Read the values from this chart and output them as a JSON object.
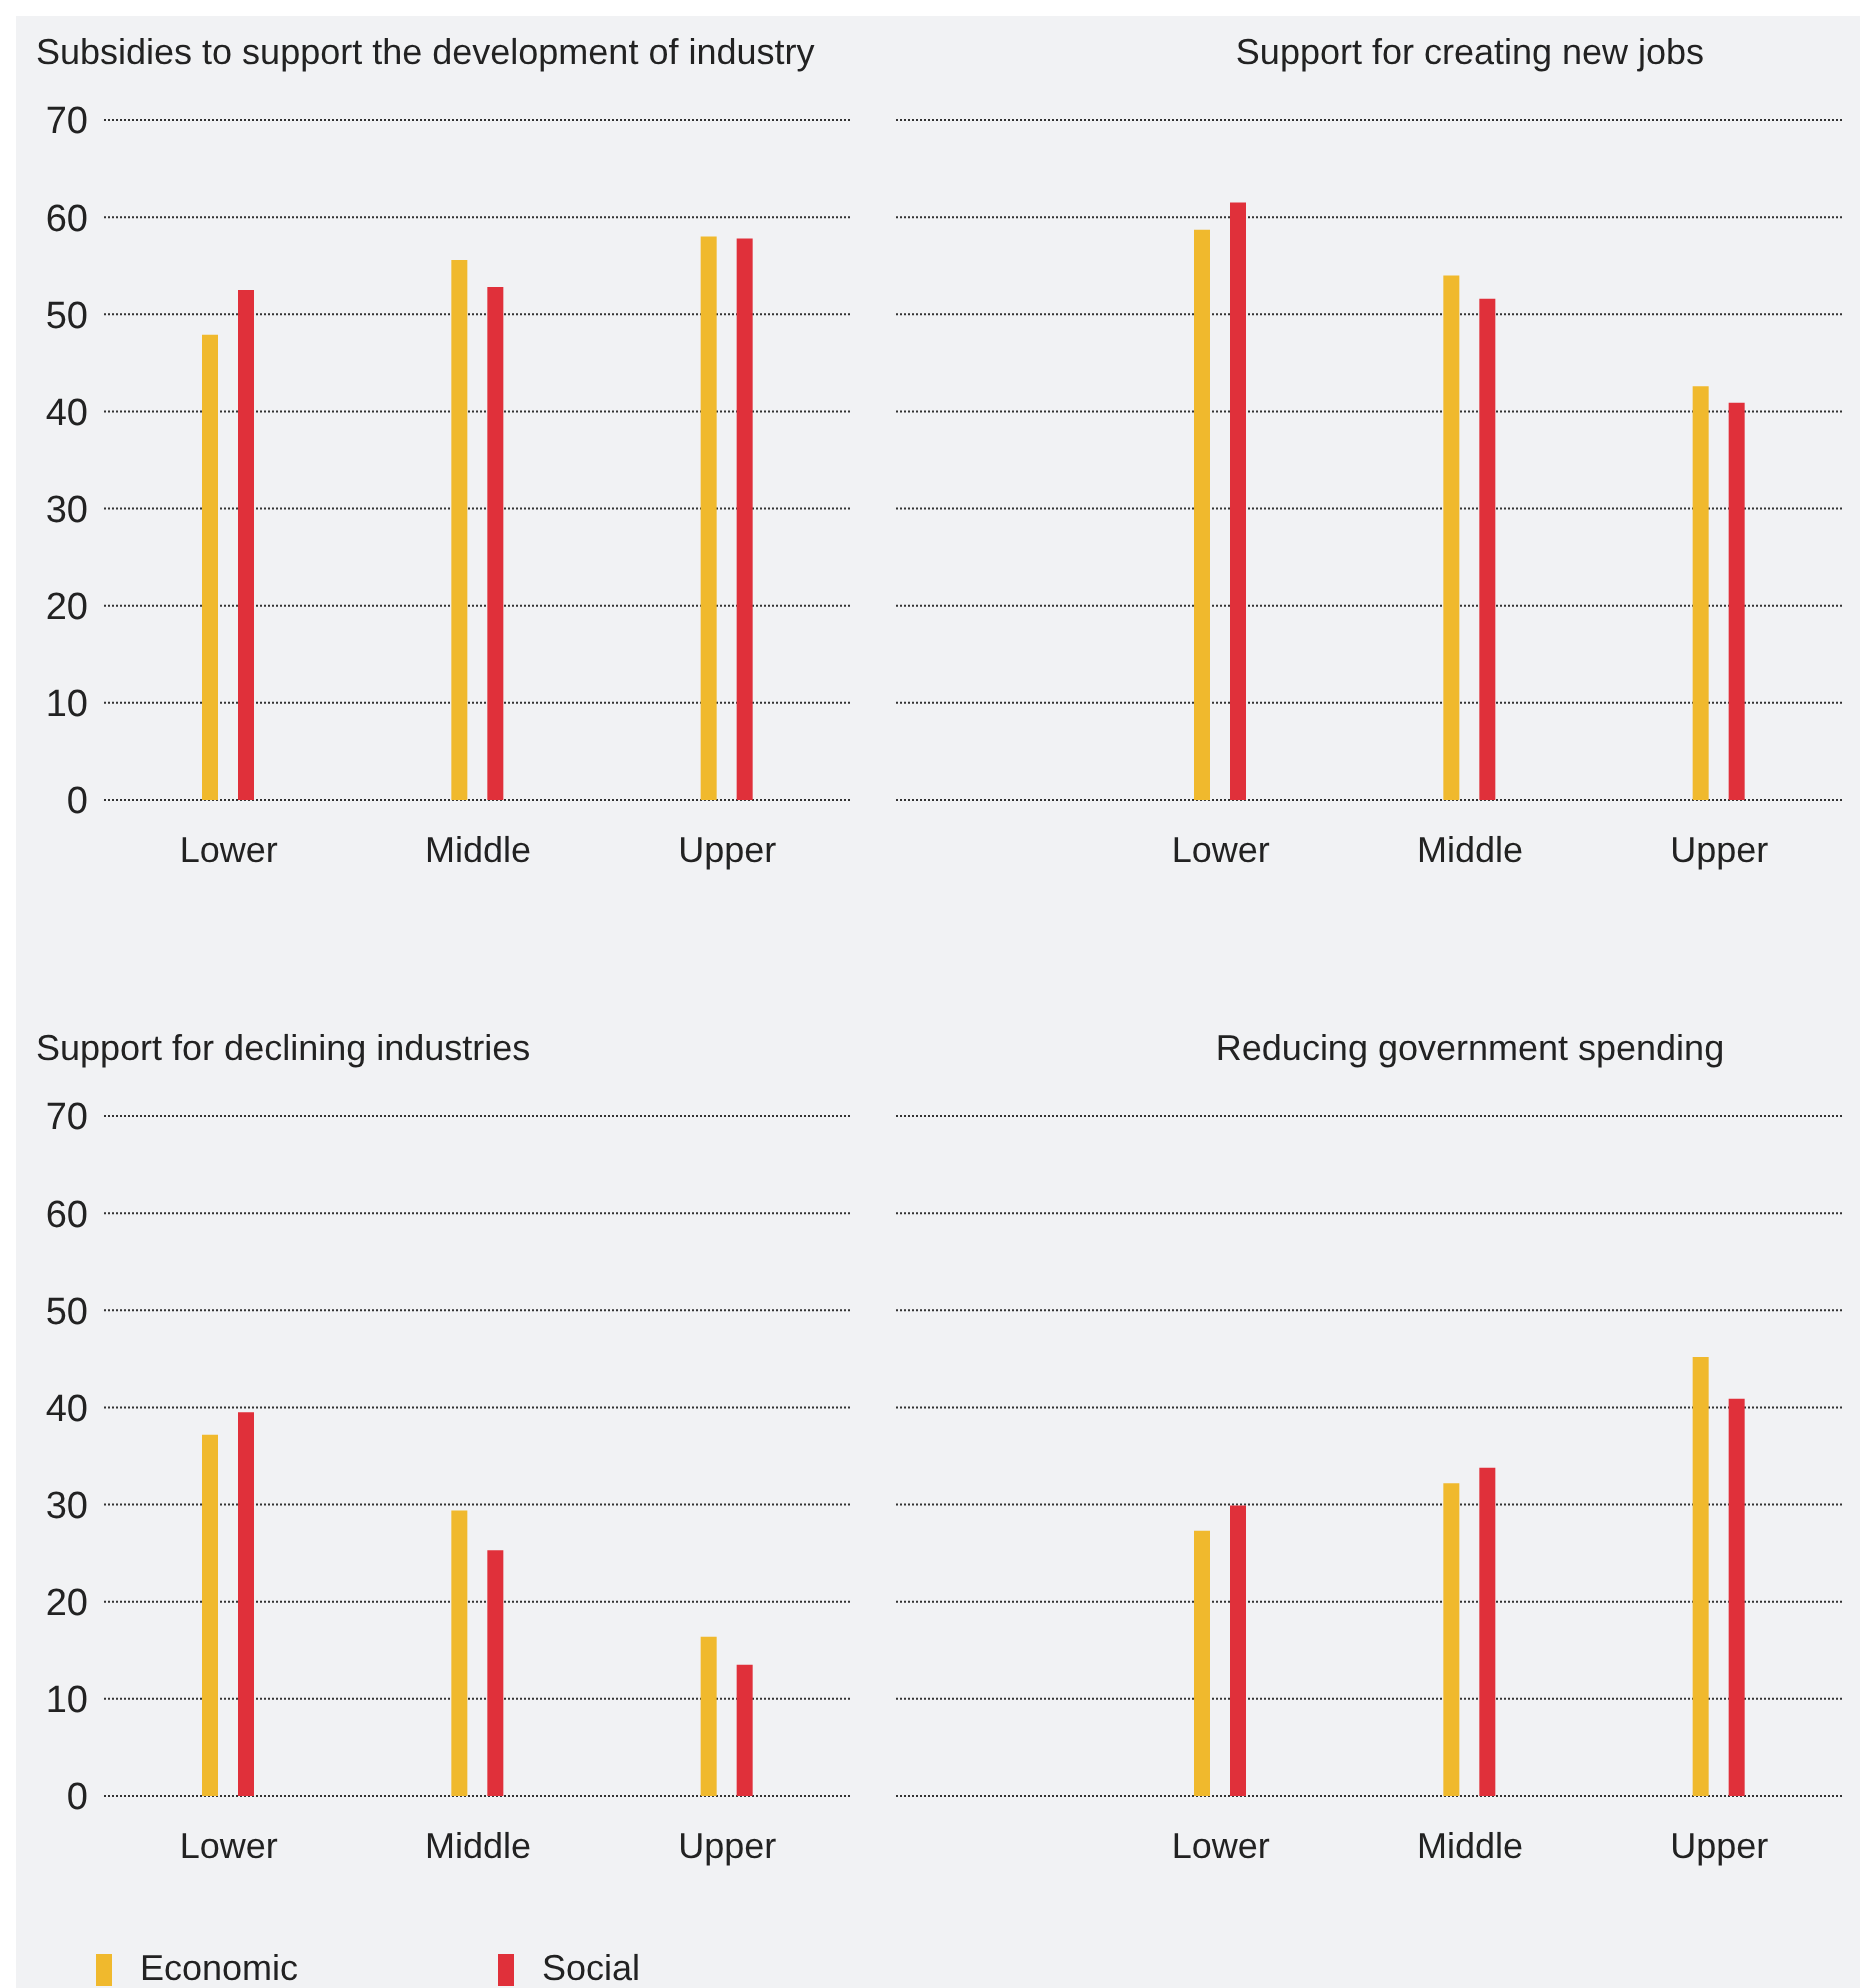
{
  "chart_data": [
    {
      "type": "bar",
      "title": "Subsidies to support the development of industry",
      "categories": [
        "Lower",
        "Middle",
        "Upper"
      ],
      "series": [
        {
          "color": "#f0b92d",
          "values": [
            47.9,
            55.6,
            58
          ]
        },
        {
          "color": "#e0303a",
          "values": [
            52.5,
            52.8,
            57.8
          ]
        }
      ],
      "ylim": [
        0,
        70
      ],
      "yticks": [
        0,
        10,
        20,
        30,
        40,
        50,
        60,
        70
      ],
      "grid": "y"
    },
    {
      "type": "bar",
      "title": "Support for creating new jobs",
      "categories": [
        "Lower",
        "Middle",
        "Upper"
      ],
      "series": [
        {
          "color": "#f0b92d",
          "values": [
            58.7,
            54,
            42.6
          ]
        },
        {
          "color": "#e0303a",
          "values": [
            61.5,
            51.6,
            40.9
          ]
        }
      ],
      "ylim": [
        0,
        70
      ],
      "yticks": [
        0,
        10,
        20,
        30,
        40,
        50,
        60,
        70
      ],
      "grid": "y",
      "tick_labels": "x"
    },
    {
      "type": "bar",
      "title": "Support for declining industries",
      "categories": [
        "Lower",
        "Middle",
        "Upper"
      ],
      "series": [
        {
          "name": "Economic",
          "color": "#f0b92d",
          "values": [
            37.2,
            29.4,
            16.4
          ]
        },
        {
          "name": "Social",
          "color": "#e0303a",
          "values": [
            39.5,
            25.3,
            13.5
          ]
        }
      ],
      "ylim": [
        0,
        70
      ],
      "yticks": [
        0,
        10,
        20,
        30,
        40,
        50,
        60,
        70
      ],
      "grid": "y",
      "legend": "bottom"
    },
    {
      "type": "bar",
      "title": "Reducing government spending",
      "categories": [
        "Lower",
        "Middle",
        "Upper"
      ],
      "series": [
        {
          "color": "#f0b92d",
          "values": [
            27.3,
            32.2,
            45.2
          ]
        },
        {
          "color": "#e0303a",
          "values": [
            29.9,
            33.8,
            40.9
          ]
        }
      ],
      "ylim": [
        0,
        70
      ],
      "yticks": [
        0,
        10,
        20,
        30,
        40,
        50,
        60,
        70
      ],
      "grid": "y",
      "tick_labels": "x"
    }
  ]
}
